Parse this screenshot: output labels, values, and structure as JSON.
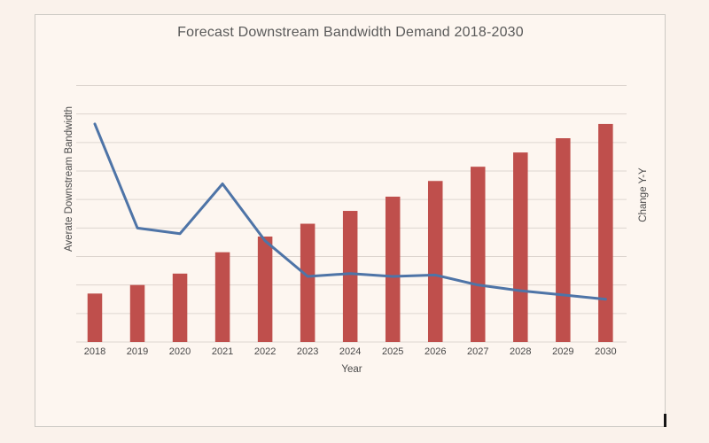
{
  "window": {
    "background_color": "#faf2eb",
    "frame_background_color": "#fdf6f0",
    "frame_border_color": "#cbc8c3"
  },
  "chart": {
    "title": "Forecast Downstream Bandwidth Demand 2018-2030",
    "x_axis_title": "Year",
    "y_axis_title": "Averate Downstream Bandwidth",
    "secondary_y_axis_title": "Change Y-Y",
    "colors": {
      "bar": "#bf4f4c",
      "line": "#4e74a7",
      "gridline": "#ddd5cf",
      "text": "#595959",
      "tick_text": "#474747"
    }
  },
  "chart_data": {
    "type": "combo",
    "title": "Forecast Downstream Bandwidth Demand 2018-2030",
    "xlabel": "Year",
    "ylabel": "Averate Downstream Bandwidth",
    "y2label": "Change Y-Y",
    "categories": [
      "2018",
      "2019",
      "2020",
      "2021",
      "2022",
      "2023",
      "2024",
      "2025",
      "2026",
      "2027",
      "2028",
      "2029",
      "2030"
    ],
    "series": [
      {
        "name": "Averate Downstream Bandwidth",
        "type": "bar",
        "axis": "primary",
        "values": [
          1.7,
          2.0,
          2.4,
          3.15,
          3.7,
          4.15,
          4.6,
          5.1,
          5.65,
          6.15,
          6.65,
          7.15,
          7.65
        ]
      },
      {
        "name": "Change Y-Y",
        "type": "line",
        "axis": "secondary",
        "values": [
          7.65,
          4.0,
          3.8,
          5.55,
          3.55,
          2.3,
          2.4,
          2.3,
          2.35,
          2.0,
          1.8,
          1.65,
          1.5
        ]
      }
    ],
    "ylim": [
      0,
      9
    ],
    "y_tick_labels_visible": false,
    "gridlines": "horizontal, 10 unlabeled lines",
    "legend": "none",
    "units_note": "values estimated in gridline units; axes show no numeric tick labels"
  }
}
